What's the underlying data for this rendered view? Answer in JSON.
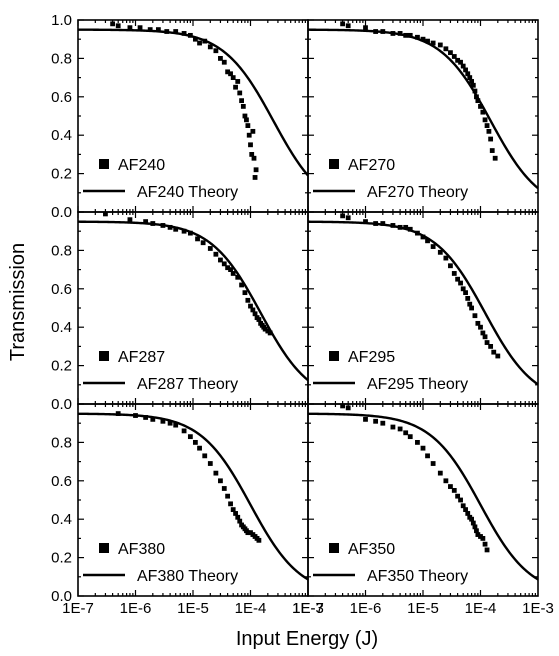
{
  "chart_data": {
    "type": "scatter",
    "layout": "3x2 grid of panels sharing axes",
    "xlabel": "Input Energy (J)",
    "ylabel": "Transmission",
    "xscale": "log",
    "xlim": [
      1e-07,
      0.001
    ],
    "ylim": [
      0.0,
      1.0
    ],
    "x_tick_labels": [
      "1E-7",
      "1E-6",
      "1E-5",
      "1E-4",
      "1E-3"
    ],
    "x_tick_values": [
      1e-07,
      1e-06,
      1e-05,
      0.0001,
      0.001
    ],
    "y_tick_values": [
      0.0,
      0.2,
      0.4,
      0.6,
      0.8,
      1.0
    ],
    "y_tick_labels_top_row": [
      "0.0",
      "0.2",
      "0.4",
      "0.6",
      "0.8",
      "1.0"
    ],
    "y_tick_labels_other_rows": [
      "0.0",
      "0.2",
      "0.4",
      "0.6",
      "0.8",
      ""
    ],
    "legend_location": "bottom-left",
    "grid": false,
    "panels": [
      {
        "row": 0,
        "col": 0,
        "series": [
          {
            "name": "AF240",
            "kind": "scatter",
            "x": [
              4e-07,
              5e-07,
              8e-07,
              1.2e-06,
              1.8e-06,
              2.5e-06,
              3.5e-06,
              5e-06,
              7e-06,
              9e-06,
              1.1e-05,
              1.3e-05,
              1.6e-05,
              2e-05,
              2.5e-05,
              3e-05,
              3.5e-05,
              4e-05,
              4.5e-05,
              5e-05,
              5.5e-05,
              6e-05,
              6.5e-05,
              7e-05,
              7.5e-05,
              8e-05,
              8.5e-05,
              9e-05,
              9.5e-05,
              0.0001,
              0.000105,
              0.00011,
              0.000115,
              0.00012,
              0.000125
            ],
            "y": [
              0.98,
              0.97,
              0.96,
              0.96,
              0.95,
              0.95,
              0.94,
              0.94,
              0.93,
              0.92,
              0.9,
              0.88,
              0.89,
              0.86,
              0.84,
              0.8,
              0.78,
              0.73,
              0.72,
              0.7,
              0.65,
              0.68,
              0.62,
              0.58,
              0.55,
              0.5,
              0.48,
              0.45,
              0.4,
              0.35,
              0.3,
              0.42,
              0.28,
              0.18,
              0.22
            ]
          },
          {
            "name": "AF240 Theory",
            "kind": "line",
            "e_sat": 0.00025,
            "t0": 0.95
          }
        ]
      },
      {
        "row": 0,
        "col": 1,
        "series": [
          {
            "name": "AF270",
            "kind": "scatter",
            "x": [
              4e-07,
              5e-07,
              1e-06,
              1.5e-06,
              2e-06,
              3e-06,
              4e-06,
              5e-06,
              6e-06,
              8e-06,
              1e-05,
              1.2e-05,
              1.5e-05,
              2e-05,
              2.5e-05,
              3e-05,
              3.5e-05,
              4e-05,
              4.5e-05,
              5e-05,
              5.5e-05,
              6e-05,
              6.5e-05,
              7e-05,
              7.5e-05,
              8e-05,
              8.5e-05,
              9e-05,
              0.0001,
              0.00011,
              0.00012,
              0.00013,
              0.00014,
              0.00015,
              0.00016,
              0.00018
            ],
            "y": [
              0.98,
              0.97,
              0.96,
              0.94,
              0.94,
              0.93,
              0.93,
              0.92,
              0.92,
              0.91,
              0.9,
              0.89,
              0.88,
              0.87,
              0.85,
              0.83,
              0.81,
              0.79,
              0.78,
              0.76,
              0.74,
              0.72,
              0.7,
              0.68,
              0.66,
              0.63,
              0.6,
              0.58,
              0.55,
              0.52,
              0.48,
              0.45,
              0.42,
              0.38,
              0.32,
              0.28
            ]
          },
          {
            "name": "AF270 Theory",
            "kind": "line",
            "e_sat": 0.00015,
            "t0": 0.95
          }
        ]
      },
      {
        "row": 1,
        "col": 0,
        "series": [
          {
            "name": "AF287",
            "kind": "scatter",
            "x": [
              3e-07,
              8e-07,
              1.5e-06,
              2e-06,
              3e-06,
              4e-06,
              5e-06,
              7e-06,
              9e-06,
              1.2e-05,
              1.5e-05,
              2e-05,
              2.5e-05,
              3e-05,
              3.5e-05,
              4e-05,
              4.5e-05,
              5e-05,
              6e-05,
              7e-05,
              8e-05,
              9e-05,
              0.0001,
              0.00011,
              0.00012,
              0.00013,
              0.00014,
              0.00015,
              0.00016,
              0.00017,
              0.00018,
              0.0002,
              0.00022
            ],
            "y": [
              0.99,
              0.96,
              0.95,
              0.94,
              0.93,
              0.92,
              0.91,
              0.9,
              0.89,
              0.86,
              0.84,
              0.81,
              0.78,
              0.75,
              0.73,
              0.71,
              0.7,
              0.68,
              0.66,
              0.62,
              0.58,
              0.54,
              0.51,
              0.49,
              0.47,
              0.45,
              0.44,
              0.42,
              0.41,
              0.4,
              0.39,
              0.38,
              0.37
            ]
          },
          {
            "name": "AF287 Theory",
            "kind": "line",
            "e_sat": 0.00015,
            "t0": 0.95
          }
        ]
      },
      {
        "row": 1,
        "col": 1,
        "series": [
          {
            "name": "AF295",
            "kind": "scatter",
            "x": [
              4e-07,
              5e-07,
              1e-06,
              1.5e-06,
              2e-06,
              3e-06,
              4e-06,
              5e-06,
              6e-06,
              8e-06,
              1e-05,
              1.2e-05,
              1.5e-05,
              2e-05,
              2.5e-05,
              3e-05,
              3.5e-05,
              4e-05,
              4.5e-05,
              5e-05,
              5.5e-05,
              6e-05,
              6.5e-05,
              7e-05,
              8e-05,
              9e-05,
              0.0001,
              0.00011,
              0.00012,
              0.00013,
              0.00015,
              0.00017,
              0.0002
            ],
            "y": [
              0.98,
              0.97,
              0.95,
              0.94,
              0.94,
              0.93,
              0.92,
              0.92,
              0.91,
              0.89,
              0.87,
              0.85,
              0.82,
              0.79,
              0.76,
              0.72,
              0.68,
              0.65,
              0.63,
              0.6,
              0.58,
              0.55,
              0.52,
              0.5,
              0.46,
              0.42,
              0.4,
              0.37,
              0.35,
              0.32,
              0.3,
              0.27,
              0.25
            ]
          },
          {
            "name": "AF295 Theory",
            "kind": "line",
            "e_sat": 0.00012,
            "t0": 0.95
          }
        ]
      },
      {
        "row": 2,
        "col": 0,
        "series": [
          {
            "name": "AF380",
            "kind": "scatter",
            "x": [
              5e-07,
              1e-06,
              1.5e-06,
              2e-06,
              3e-06,
              4e-06,
              5e-06,
              7e-06,
              9e-06,
              1.1e-05,
              1.3e-05,
              1.6e-05,
              2e-05,
              2.5e-05,
              3e-05,
              3.5e-05,
              4e-05,
              4.5e-05,
              5e-05,
              5.5e-05,
              6e-05,
              6.5e-05,
              7e-05,
              7.5e-05,
              8e-05,
              8.5e-05,
              9e-05,
              0.0001,
              0.00011,
              0.00012,
              0.00013,
              0.00014
            ],
            "y": [
              0.95,
              0.94,
              0.93,
              0.92,
              0.91,
              0.9,
              0.89,
              0.86,
              0.83,
              0.8,
              0.77,
              0.73,
              0.69,
              0.64,
              0.6,
              0.56,
              0.52,
              0.48,
              0.45,
              0.43,
              0.41,
              0.39,
              0.37,
              0.36,
              0.35,
              0.34,
              0.33,
              0.33,
              0.32,
              0.31,
              0.3,
              0.29
            ]
          },
          {
            "name": "AF380 Theory",
            "kind": "line",
            "e_sat": 0.0001,
            "t0": 0.95
          }
        ]
      },
      {
        "row": 2,
        "col": 1,
        "series": [
          {
            "name": "AF350",
            "kind": "scatter",
            "x": [
              4e-07,
              5e-07,
              1e-06,
              1.5e-06,
              2e-06,
              3e-06,
              4e-06,
              5e-06,
              6e-06,
              8e-06,
              1e-05,
              1.2e-05,
              1.5e-05,
              2e-05,
              2.5e-05,
              3e-05,
              3.5e-05,
              4e-05,
              4.5e-05,
              5e-05,
              5.5e-05,
              6e-05,
              6.5e-05,
              7e-05,
              7.5e-05,
              8e-05,
              8.5e-05,
              9e-05,
              0.0001,
              0.00011,
              0.00012,
              0.00013
            ],
            "y": [
              0.99,
              0.98,
              0.92,
              0.91,
              0.9,
              0.88,
              0.87,
              0.85,
              0.83,
              0.8,
              0.77,
              0.73,
              0.69,
              0.64,
              0.6,
              0.57,
              0.55,
              0.52,
              0.5,
              0.47,
              0.45,
              0.43,
              0.41,
              0.4,
              0.38,
              0.36,
              0.34,
              0.32,
              0.31,
              0.3,
              0.27,
              0.24
            ]
          },
          {
            "name": "AF350 Theory",
            "kind": "line",
            "e_sat": 0.0001,
            "t0": 0.95
          }
        ]
      }
    ]
  }
}
